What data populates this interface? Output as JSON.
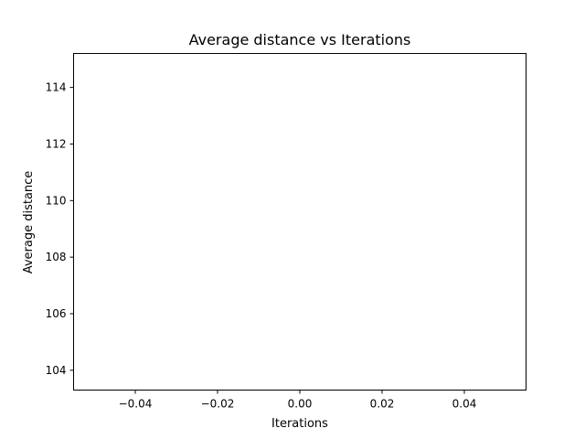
{
  "chart_data": {
    "type": "line",
    "title": "Average distance vs Iterations",
    "xlabel": "Iterations",
    "ylabel": "Average distance",
    "xlim": [
      -0.055,
      0.055
    ],
    "ylim": [
      103.3,
      115.2
    ],
    "xticks": [
      -0.04,
      -0.02,
      0.0,
      0.02,
      0.04
    ],
    "xtick_labels": [
      "−0.04",
      "−0.02",
      "0.00",
      "0.02",
      "0.04"
    ],
    "yticks": [
      104,
      106,
      108,
      110,
      112,
      114
    ],
    "ytick_labels": [
      "104",
      "106",
      "108",
      "110",
      "112",
      "114"
    ],
    "grid": false,
    "series": [
      {
        "x": [],
        "y": [],
        "color": "#1f77b4"
      }
    ]
  }
}
